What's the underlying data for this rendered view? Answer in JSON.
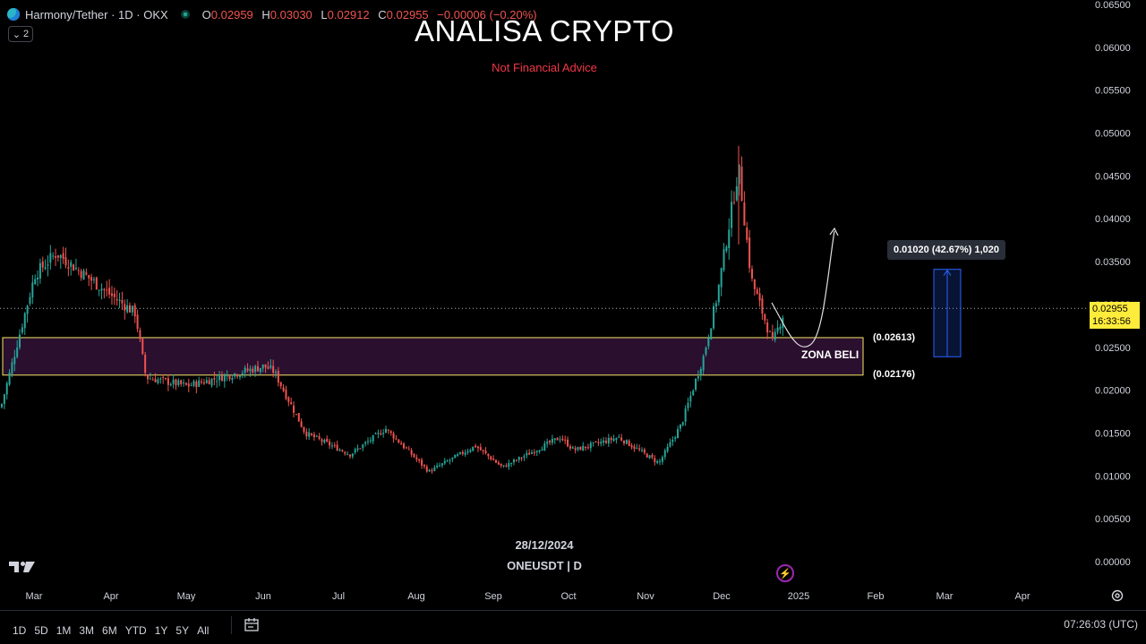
{
  "header": {
    "symbol": "Harmony/Tether · 1D · OKX",
    "ohlc": [
      {
        "k": "O",
        "v": "0.02959"
      },
      {
        "k": "H",
        "v": "0.03030"
      },
      {
        "k": "L",
        "v": "0.02912"
      },
      {
        "k": "C",
        "v": "0.02955"
      }
    ],
    "change": "−0.00006 (−0.20%)",
    "indicators_count": "2"
  },
  "overlay": {
    "title": "ANALISA CRYPTO",
    "subtitle": "Not Financial Advice",
    "watermark_date": "28/12/2024",
    "watermark_symbol": "ONEUSDT | D"
  },
  "last_price": {
    "value": "0.02955",
    "countdown": "16:33:56"
  },
  "measure": {
    "label": "0.01020 (42.67%) 1,020"
  },
  "zone": {
    "label": "ZONA BELI",
    "upper": "(0.02613)",
    "lower": "(0.02176)"
  },
  "timeframes": [
    "1D",
    "5D",
    "1M",
    "3M",
    "6M",
    "YTD",
    "1Y",
    "5Y",
    "All"
  ],
  "clock": "07:26:03 (UTC)",
  "colors": {
    "up": "#26a69a",
    "down": "#ef5350",
    "zone_fill": "#2a0f2e",
    "zone_border": "#f5e663",
    "accent": "#2962ff"
  },
  "chart_data": {
    "type": "candlestick",
    "symbol": "ONEUSDT",
    "interval": "1D",
    "y_axis": {
      "ticks": [
        0.0,
        0.005,
        0.01,
        0.015,
        0.02,
        0.025,
        0.03,
        0.035,
        0.04,
        0.045,
        0.05,
        0.055,
        0.06,
        0.065
      ],
      "tick_labels": [
        "0.00000",
        "0.00500",
        "0.01000",
        "0.01500",
        "0.02000",
        "0.02500",
        "0.03000",
        "0.03500",
        "0.04000",
        "0.04500",
        "0.05000",
        "0.05500",
        "0.06000",
        "0.06500"
      ],
      "range": [
        0.0,
        0.065
      ]
    },
    "x_axis": {
      "labels": [
        "Mar",
        "Apr",
        "May",
        "Jun",
        "Jul",
        "Aug",
        "Sep",
        "Oct",
        "Nov",
        "Dec",
        "2025",
        "Feb",
        "Mar",
        "Apr"
      ]
    },
    "close_path": [
      {
        "x": "Feb",
        "y": 0.018
      },
      {
        "x": "Mar",
        "y": 0.0335
      },
      {
        "x": "Mar",
        "y": 0.036
      },
      {
        "x": "Apr",
        "y": 0.031
      },
      {
        "x": "Apr",
        "y": 0.029
      },
      {
        "x": "Apr",
        "y": 0.0215
      },
      {
        "x": "May",
        "y": 0.0205
      },
      {
        "x": "Jun",
        "y": 0.0228
      },
      {
        "x": "Jun",
        "y": 0.0222
      },
      {
        "x": "Jul",
        "y": 0.015
      },
      {
        "x": "Jul",
        "y": 0.0125
      },
      {
        "x": "Aug",
        "y": 0.0155
      },
      {
        "x": "Aug",
        "y": 0.0105
      },
      {
        "x": "Sep",
        "y": 0.0135
      },
      {
        "x": "Sep",
        "y": 0.011
      },
      {
        "x": "Oct",
        "y": 0.0145
      },
      {
        "x": "Oct",
        "y": 0.013
      },
      {
        "x": "Nov",
        "y": 0.0145
      },
      {
        "x": "Nov",
        "y": 0.0115
      },
      {
        "x": "Nov",
        "y": 0.016
      },
      {
        "x": "Dec",
        "y": 0.024
      },
      {
        "x": "Dec",
        "y": 0.031
      },
      {
        "x": "Dec",
        "y": 0.046
      },
      {
        "x": "Dec",
        "y": 0.033
      },
      {
        "x": "Dec",
        "y": 0.0255
      },
      {
        "x": "2025",
        "y": 0.02955
      }
    ],
    "last_price": 0.02955,
    "buy_zone": {
      "label": "ZONA BELI",
      "upper": 0.02613,
      "lower": 0.02176
    },
    "measure": {
      "from": 0.0239,
      "to": 0.0341,
      "delta": 0.0102,
      "percent": 42.67
    },
    "projection": "curve up from zone toward 0.039"
  }
}
